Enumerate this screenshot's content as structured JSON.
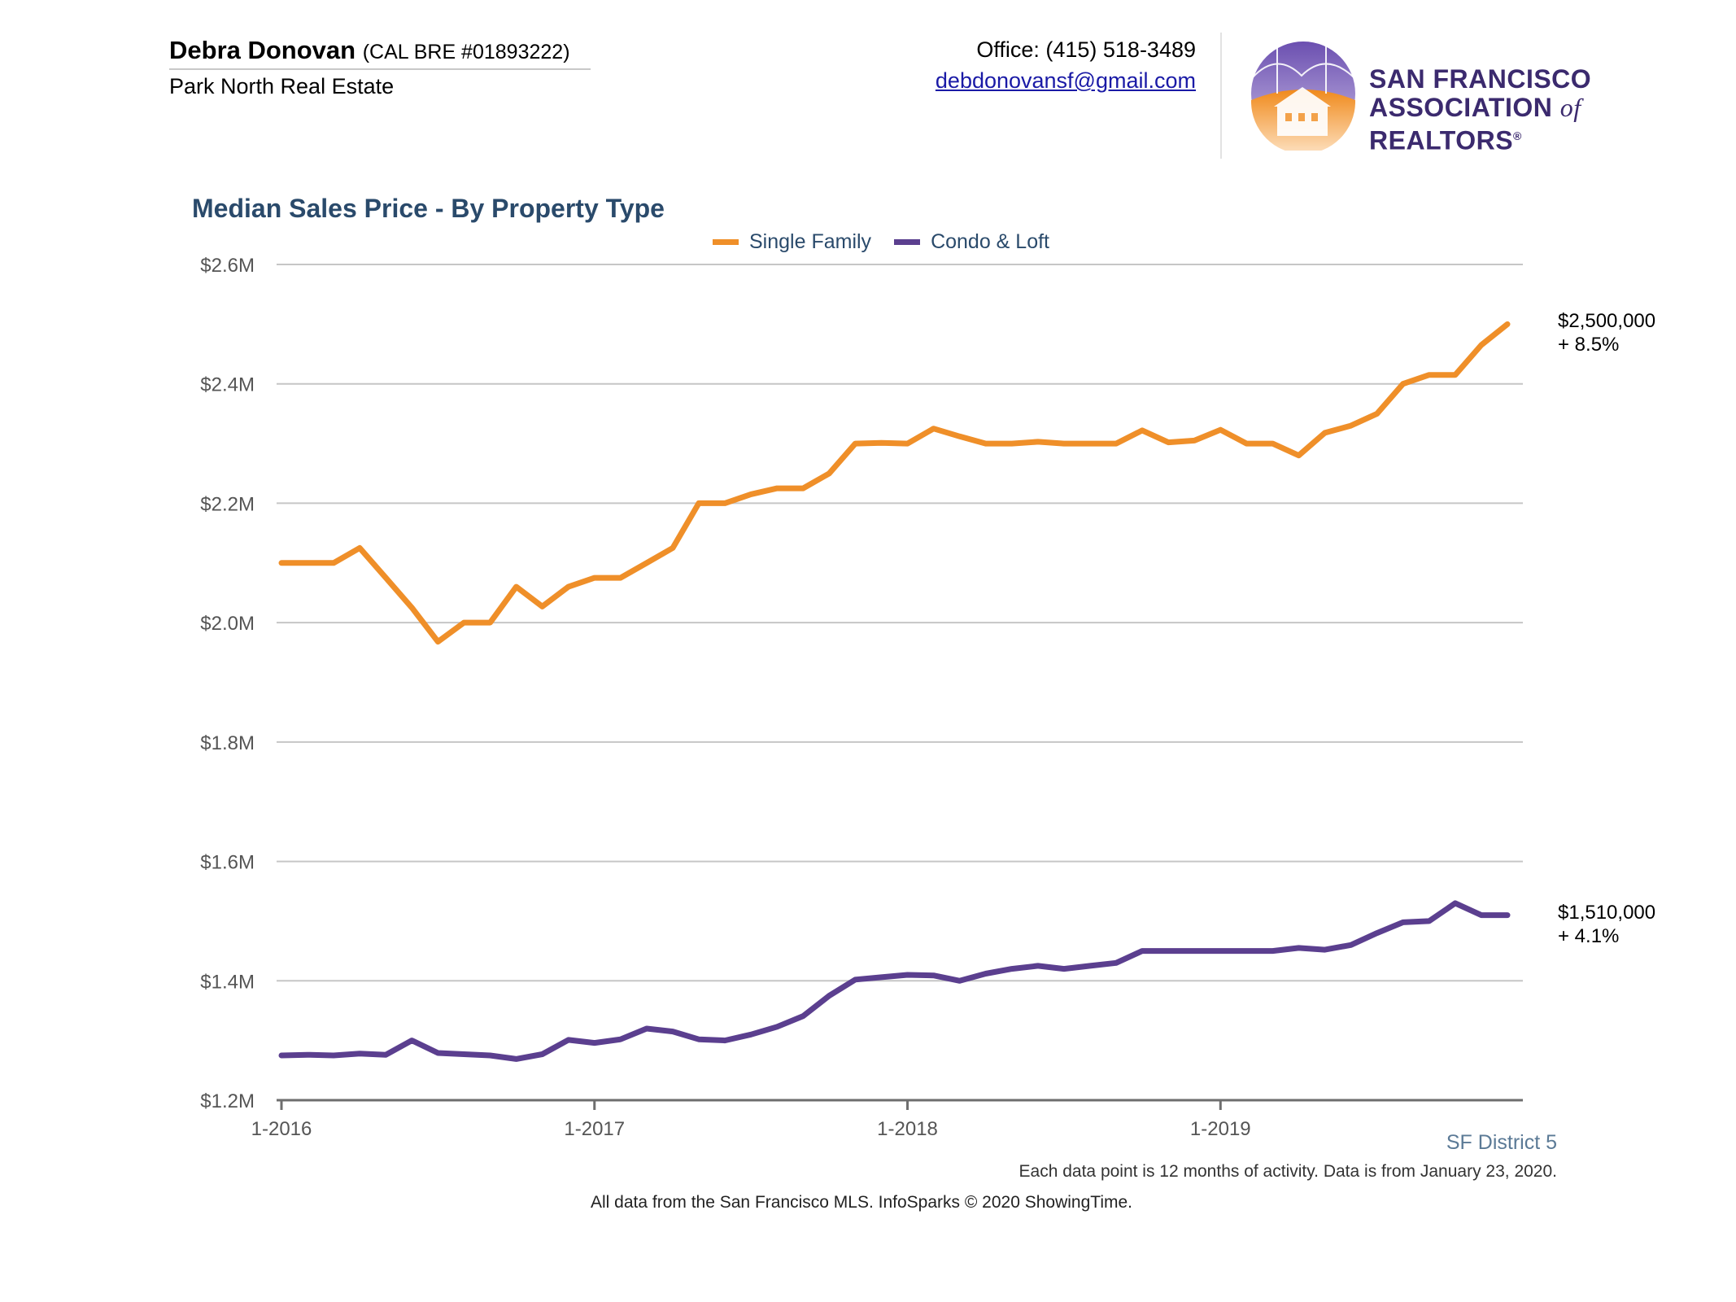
{
  "header": {
    "agent_name": "Debra Donovan",
    "agent_license": "(CAL BRE #01893222)",
    "company": "Park North Real Estate",
    "office_phone": "Office: (415) 518-3489",
    "email": "debdonovansf@gmail.com",
    "association_line1": "San Francisco",
    "association_line2_a": "Association",
    "association_line2_of": "of",
    "association_line2_b": "Realtors",
    "association_mark": "®"
  },
  "colors": {
    "single_family": "#ef8f29",
    "condo_loft": "#5b3f8f",
    "grid": "#c6c6c6",
    "axis": "#6e6e6e",
    "title": "#2a4a6b"
  },
  "chart_data": {
    "type": "line",
    "title": "Median Sales Price - By Property Type",
    "xlabel": "",
    "ylabel": "",
    "ylim": [
      1200000,
      2600000
    ],
    "yticks": [
      1200000,
      1400000,
      1600000,
      1800000,
      2000000,
      2200000,
      2400000,
      2600000
    ],
    "ytick_labels": [
      "$1.2M",
      "$1.4M",
      "$1.6M",
      "$1.8M",
      "$2.0M",
      "$2.2M",
      "$2.4M",
      "$2.6M"
    ],
    "x_tick_labels": [
      {
        "label": "1-2016",
        "index": 0
      },
      {
        "label": "1-2017",
        "index": 12
      },
      {
        "label": "1-2018",
        "index": 24
      },
      {
        "label": "1-2019",
        "index": 36
      }
    ],
    "x_months": 48,
    "grid": true,
    "legend_position": "top-center",
    "series": [
      {
        "name": "Single Family",
        "color_key": "single_family",
        "values": [
          2100000,
          2100000,
          2100000,
          2125000,
          2075000,
          2025000,
          1968000,
          2000000,
          2000000,
          2060000,
          2027000,
          2060000,
          2075000,
          2075000,
          2100000,
          2125000,
          2200000,
          2200000,
          2215000,
          2225000,
          2225000,
          2250000,
          2300000,
          2301000,
          2300000,
          2325000,
          2312000,
          2300000,
          2300000,
          2303000,
          2300000,
          2300000,
          2300000,
          2322000,
          2302000,
          2305000,
          2323000,
          2300000,
          2300000,
          2280000,
          2318000,
          2330000,
          2350000,
          2400000,
          2415000,
          2415000,
          2465000,
          2500000
        ],
        "end_label": "$2,500,000",
        "end_change": "+ 8.5%"
      },
      {
        "name": "Condo & Loft",
        "color_key": "condo_loft",
        "values": [
          1275000,
          1276000,
          1275000,
          1278000,
          1276000,
          1300000,
          1279000,
          1277000,
          1275000,
          1269000,
          1277000,
          1301000,
          1296000,
          1302000,
          1320000,
          1315000,
          1302000,
          1300000,
          1310000,
          1323000,
          1341000,
          1375000,
          1402000,
          1406000,
          1410000,
          1409000,
          1400000,
          1412000,
          1420000,
          1425000,
          1420000,
          1425000,
          1430000,
          1450000,
          1450000,
          1450000,
          1450000,
          1450000,
          1450000,
          1455000,
          1452000,
          1460000,
          1480000,
          1498000,
          1500000,
          1530000,
          1510000,
          1510000
        ],
        "end_label": "$1,510,000",
        "end_change": "+ 4.1%"
      }
    ]
  },
  "footer": {
    "district": "SF District 5",
    "note": "Each data point is 12 months of activity. Data is from January 23, 2020.",
    "source": "All data from the San Francisco MLS. InfoSparks © 2020 ShowingTime."
  }
}
